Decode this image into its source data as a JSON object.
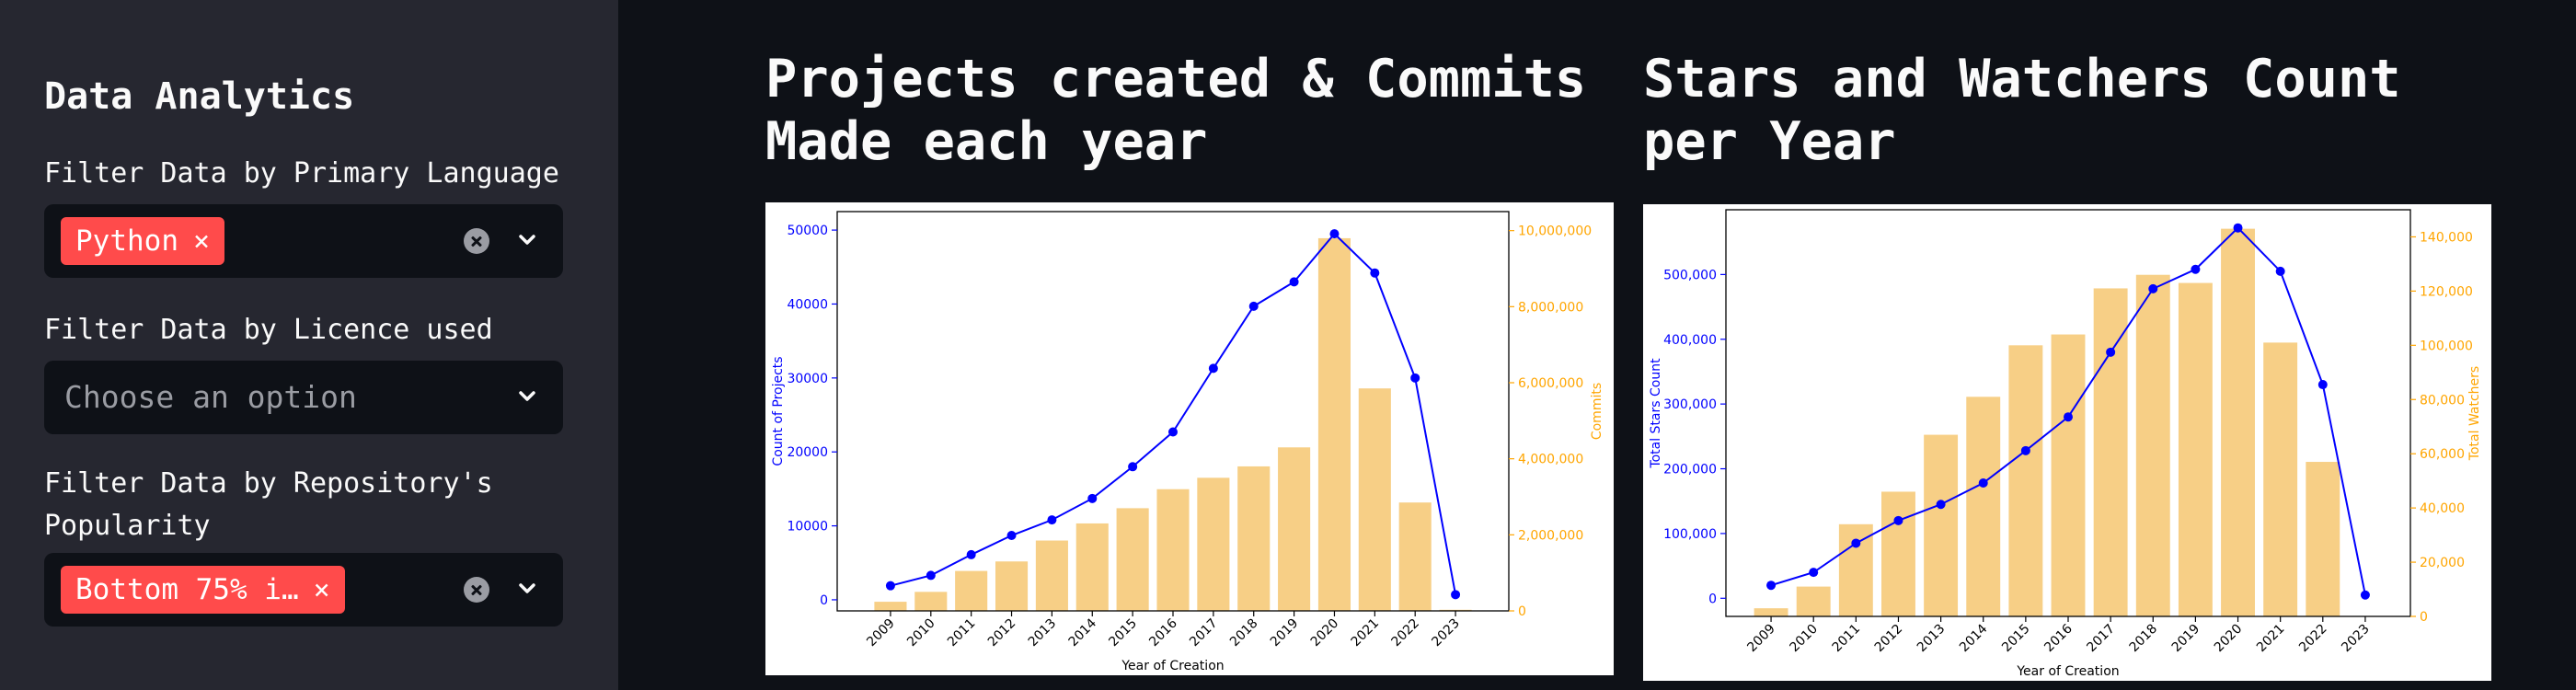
{
  "sidebar": {
    "title": "Data Analytics",
    "filters": [
      {
        "label": "Filter Data by Primary Language",
        "selected": [
          "Python"
        ],
        "placeholder": ""
      },
      {
        "label": "Filter Data by Licence used",
        "selected": [],
        "placeholder": "Choose an option"
      },
      {
        "label_lines": [
          "Filter Data by Repository's",
          "Popularity"
        ],
        "selected": [
          "Bottom 75% i…"
        ],
        "placeholder": ""
      }
    ]
  },
  "main": {
    "chart1_title_lines": [
      "Projects created & Commits",
      "Made each year"
    ],
    "chart2_title_lines": [
      "Stars and Watchers Count",
      "per Year"
    ]
  },
  "colors": {
    "line": "#0000ff",
    "bar": "#f7cf86",
    "bar_axis": "#ffa500",
    "tag": "#ff4b4b"
  },
  "chart_data": [
    {
      "type": "bar+line",
      "categories": [
        "2009",
        "2010",
        "2011",
        "2012",
        "2013",
        "2014",
        "2015",
        "2016",
        "2017",
        "2018",
        "2019",
        "2020",
        "2021",
        "2022",
        "2023"
      ],
      "xlabel": "Year of Creation",
      "line": {
        "ylabel": "Count of Projects",
        "values": [
          1900,
          3300,
          6100,
          8700,
          10800,
          13700,
          18000,
          22700,
          31300,
          39700,
          43000,
          49500,
          44200,
          30000,
          700
        ],
        "ylim": [
          -1500,
          52500
        ],
        "ticks": [
          0,
          10000,
          20000,
          30000,
          40000,
          50000
        ],
        "tick_labels": [
          "0",
          "10000",
          "20000",
          "30000",
          "40000",
          "50000"
        ]
      },
      "bars": {
        "ylabel": "Commits",
        "values": [
          240000,
          500000,
          1050000,
          1300000,
          1850000,
          2300000,
          2700000,
          3200000,
          3500000,
          3800000,
          4300000,
          9800000,
          5850000,
          2850000,
          30000
        ],
        "ylim": [
          0,
          10500000
        ],
        "ticks": [
          0,
          2000000,
          4000000,
          6000000,
          8000000,
          10000000
        ],
        "tick_labels": [
          "0",
          "2,000,000",
          "4,000,000",
          "6,000,000",
          "8,000,000",
          "10,000,000"
        ]
      }
    },
    {
      "type": "bar+line",
      "categories": [
        "2009",
        "2010",
        "2011",
        "2012",
        "2013",
        "2014",
        "2015",
        "2016",
        "2017",
        "2018",
        "2019",
        "2020",
        "2021",
        "2022",
        "2023"
      ],
      "xlabel": "Year of Creation",
      "line": {
        "ylabel": "Total Stars Count",
        "values": [
          20000,
          40000,
          85000,
          120000,
          145000,
          178000,
          228000,
          280000,
          380000,
          478000,
          508000,
          572000,
          505000,
          330000,
          5000
        ],
        "ylim": [
          -28000,
          600000
        ],
        "ticks": [
          0,
          100000,
          200000,
          300000,
          400000,
          500000
        ],
        "tick_labels": [
          "0",
          "100,000",
          "200,000",
          "300,000",
          "400,000",
          "500,000"
        ]
      },
      "bars": {
        "ylabel": "Total Watchers",
        "values": [
          3000,
          11000,
          34000,
          46000,
          67000,
          81000,
          100000,
          104000,
          121000,
          126000,
          123000,
          143000,
          101000,
          57000,
          0
        ],
        "ylim": [
          0,
          150000
        ],
        "ticks": [
          0,
          20000,
          40000,
          60000,
          80000,
          100000,
          120000,
          140000
        ],
        "tick_labels": [
          "0",
          "20,000",
          "40,000",
          "60,000",
          "80,000",
          "100,000",
          "120,000",
          "140,000"
        ]
      }
    }
  ]
}
